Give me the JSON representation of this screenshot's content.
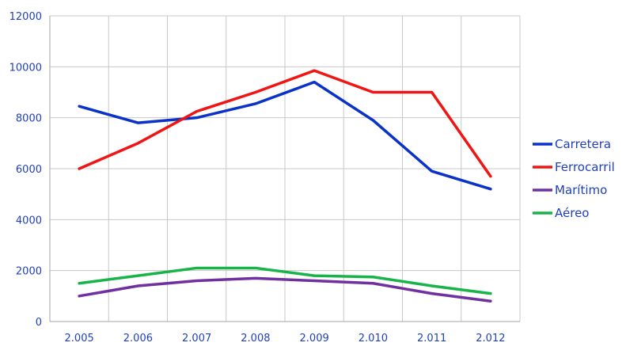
{
  "chart_data": {
    "type": "line",
    "x": [
      "2.005",
      "2.006",
      "2.007",
      "2.008",
      "2.009",
      "2.010",
      "2.011",
      "2.012"
    ],
    "ylim": [
      0,
      12000
    ],
    "yticks": [
      0,
      2000,
      4000,
      6000,
      8000,
      10000,
      12000
    ],
    "grid": true,
    "legend_position": "right",
    "series": [
      {
        "name": "Carretera",
        "color": "#0a32c8",
        "values": [
          8450,
          7800,
          8000,
          8550,
          9400,
          7900,
          5900,
          5200
        ]
      },
      {
        "name": "Ferrocarril",
        "color": "#f01414",
        "values": [
          6000,
          7000,
          8250,
          9000,
          9850,
          9000,
          9000,
          5700
        ]
      },
      {
        "name": "Marítimo",
        "color": "#7030a0",
        "values": [
          1000,
          1400,
          1600,
          1700,
          1600,
          1500,
          1100,
          800
        ]
      },
      {
        "name": "Aéreo",
        "color": "#18b44a",
        "values": [
          1500,
          1800,
          2100,
          2100,
          1800,
          1750,
          1400,
          1100
        ]
      }
    ]
  }
}
